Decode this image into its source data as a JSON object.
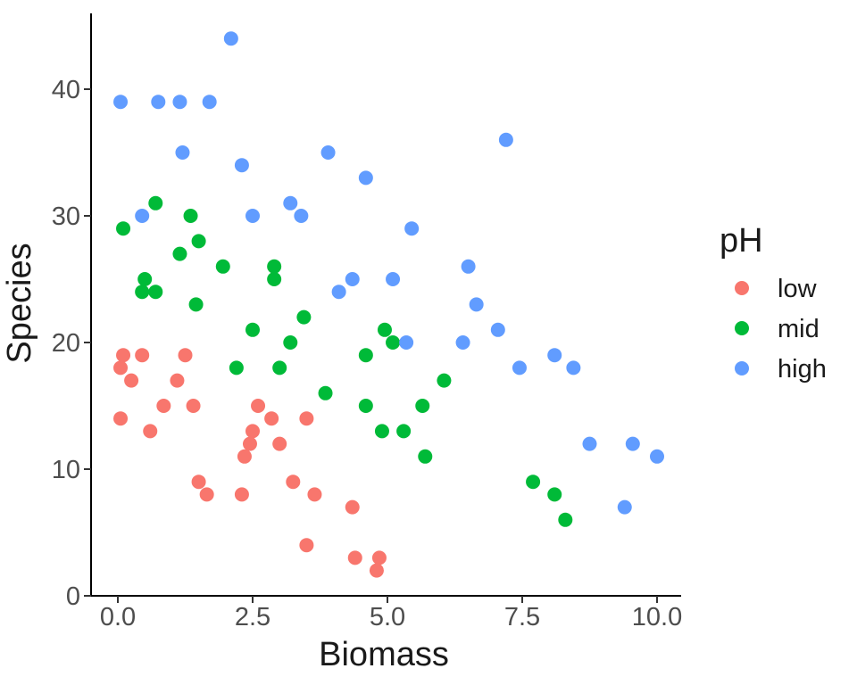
{
  "chart_data": {
    "type": "scatter",
    "title": "",
    "xlabel": "Biomass",
    "ylabel": "Species",
    "xlim": [
      0,
      10
    ],
    "ylim": [
      0,
      46
    ],
    "grid": false,
    "point_radius": 8,
    "x_ticks": {
      "values": [
        0,
        2.5,
        5,
        7.5,
        10
      ],
      "labels": [
        "0.0",
        "2.5",
        "5.0",
        "7.5",
        "10.0"
      ]
    },
    "y_ticks": {
      "values": [
        0,
        10,
        20,
        30,
        40
      ],
      "labels": [
        "0",
        "10",
        "20",
        "30",
        "40"
      ]
    },
    "legend": {
      "title": "pH",
      "position": "right"
    },
    "series": [
      {
        "name": "low",
        "color": "#F8766D",
        "points": [
          [
            0.1,
            19
          ],
          [
            0.45,
            19
          ],
          [
            1.25,
            19
          ],
          [
            0.05,
            18
          ],
          [
            0.25,
            17
          ],
          [
            1.1,
            17
          ],
          [
            0.85,
            15
          ],
          [
            1.4,
            15
          ],
          [
            0.05,
            14
          ],
          [
            0.6,
            13
          ],
          [
            2.6,
            15
          ],
          [
            2.85,
            14
          ],
          [
            3.5,
            14
          ],
          [
            2.5,
            13
          ],
          [
            2.45,
            12
          ],
          [
            2.35,
            11
          ],
          [
            3.0,
            12
          ],
          [
            1.5,
            9
          ],
          [
            1.65,
            8
          ],
          [
            2.3,
            8
          ],
          [
            3.25,
            9
          ],
          [
            3.65,
            8
          ],
          [
            4.35,
            7
          ],
          [
            3.5,
            4
          ],
          [
            4.4,
            3
          ],
          [
            4.85,
            3
          ],
          [
            4.8,
            2
          ]
        ]
      },
      {
        "name": "mid",
        "color": "#00BA38",
        "points": [
          [
            0.1,
            29
          ],
          [
            0.7,
            31
          ],
          [
            1.35,
            30
          ],
          [
            1.5,
            28
          ],
          [
            1.15,
            27
          ],
          [
            1.95,
            26
          ],
          [
            0.5,
            25
          ],
          [
            0.45,
            24
          ],
          [
            0.7,
            24
          ],
          [
            1.45,
            23
          ],
          [
            2.9,
            26
          ],
          [
            2.9,
            25
          ],
          [
            2.5,
            21
          ],
          [
            3.45,
            22
          ],
          [
            2.2,
            18
          ],
          [
            3.0,
            18
          ],
          [
            3.2,
            20
          ],
          [
            3.85,
            16
          ],
          [
            4.6,
            19
          ],
          [
            4.95,
            21
          ],
          [
            5.1,
            20
          ],
          [
            4.6,
            15
          ],
          [
            4.9,
            13
          ],
          [
            6.05,
            17
          ],
          [
            5.65,
            15
          ],
          [
            5.3,
            13
          ],
          [
            5.7,
            11
          ],
          [
            7.7,
            9
          ],
          [
            8.1,
            8
          ],
          [
            8.3,
            6
          ]
        ]
      },
      {
        "name": "high",
        "color": "#619CFF",
        "points": [
          [
            0.05,
            39
          ],
          [
            0.75,
            39
          ],
          [
            1.15,
            39
          ],
          [
            1.7,
            39
          ],
          [
            2.1,
            44
          ],
          [
            1.2,
            35
          ],
          [
            2.3,
            34
          ],
          [
            3.9,
            35
          ],
          [
            4.6,
            33
          ],
          [
            0.45,
            30
          ],
          [
            2.5,
            30
          ],
          [
            3.2,
            31
          ],
          [
            3.4,
            30
          ],
          [
            5.45,
            29
          ],
          [
            7.2,
            36
          ],
          [
            6.5,
            26
          ],
          [
            4.35,
            25
          ],
          [
            4.1,
            24
          ],
          [
            5.1,
            25
          ],
          [
            6.65,
            23
          ],
          [
            7.05,
            21
          ],
          [
            5.35,
            20
          ],
          [
            6.4,
            20
          ],
          [
            7.45,
            18
          ],
          [
            8.1,
            19
          ],
          [
            8.45,
            18
          ],
          [
            8.75,
            12
          ],
          [
            9.55,
            12
          ],
          [
            10.0,
            11
          ],
          [
            9.4,
            7
          ]
        ]
      }
    ]
  }
}
